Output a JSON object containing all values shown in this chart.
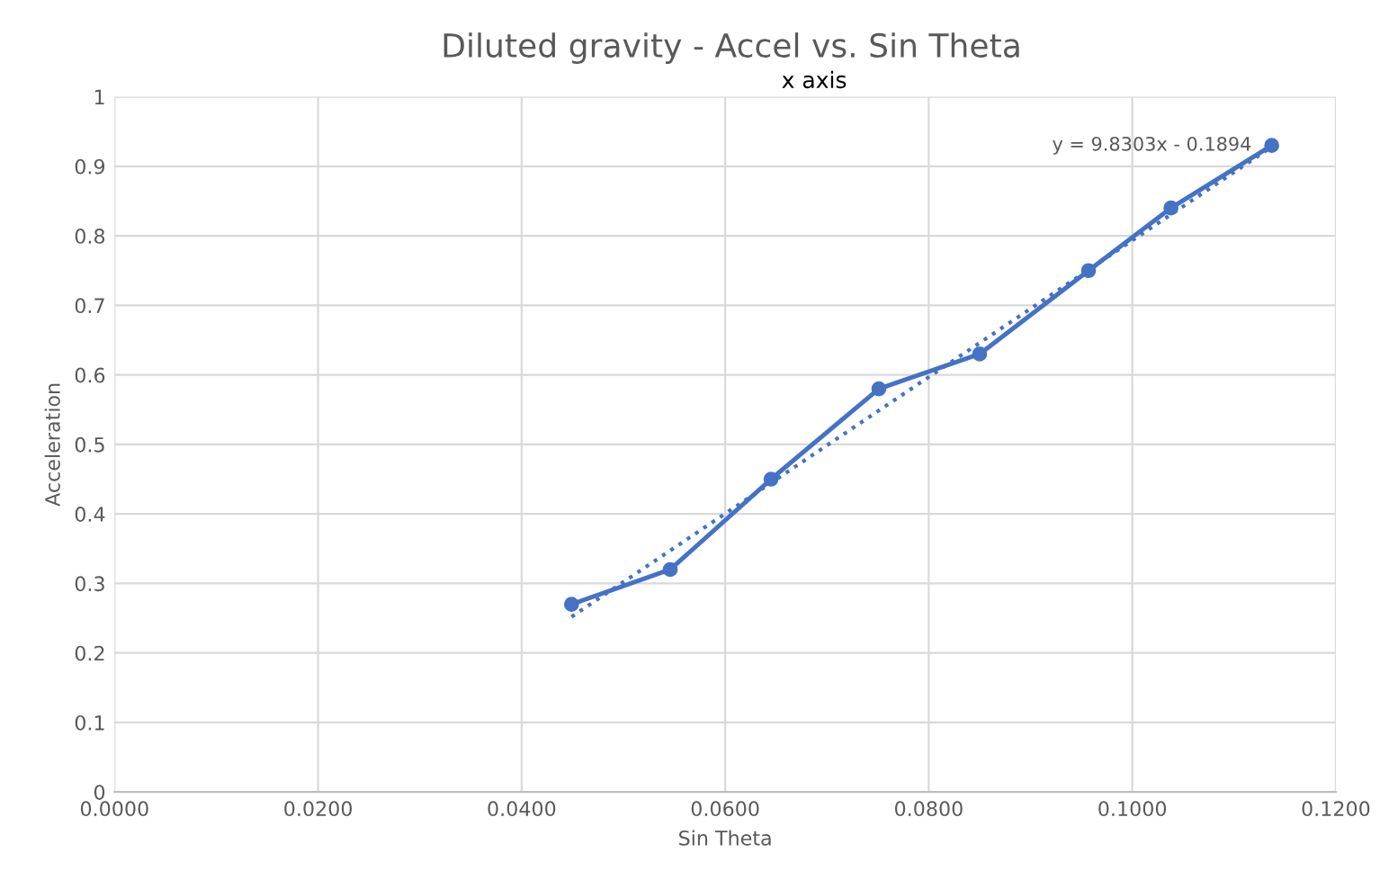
{
  "chart_data": {
    "type": "line",
    "title": "Diluted gravity - Accel vs. Sin Theta",
    "subtitle": "x axis",
    "xlabel": "Sin Theta",
    "ylabel": "Acceleration",
    "series": [
      {
        "color": "#4472c4",
        "marker": "circle",
        "line_style": "solid",
        "x": [
          0.0449,
          0.0546,
          0.0645,
          0.0751,
          0.085,
          0.0957,
          0.1038,
          0.1137
        ],
        "values": [
          0.27,
          0.32,
          0.45,
          0.58,
          0.63,
          0.75,
          0.84,
          0.93
        ]
      },
      {
        "type": "line",
        "color": "#4472c4",
        "marker": "none",
        "line_style": "dotted",
        "x": [
          0.0449,
          0.1137
        ],
        "values": [
          0.252,
          0.928
        ]
      }
    ],
    "annotations": [
      {
        "text": "y = 9.8303x - 0.1894",
        "x": 0.1137,
        "y": 0.93
      }
    ],
    "xlim": [
      0,
      0.12
    ],
    "xticks": [
      {
        "value": 0,
        "label": "0.0000"
      },
      {
        "value": 0.02,
        "label": "0.0200"
      },
      {
        "value": 0.04,
        "label": "0.0400"
      },
      {
        "value": 0.06,
        "label": "0.0600"
      },
      {
        "value": 0.08,
        "label": "0.0800"
      },
      {
        "value": 0.1,
        "label": "0.1000"
      },
      {
        "value": 0.12,
        "label": "0.1200"
      }
    ],
    "ylim": [
      0,
      1
    ],
    "yticks": [
      0,
      0.1,
      0.2,
      0.3,
      0.4,
      0.5,
      0.6,
      0.7,
      0.8,
      0.9,
      1
    ],
    "grid": true,
    "legend": false
  }
}
